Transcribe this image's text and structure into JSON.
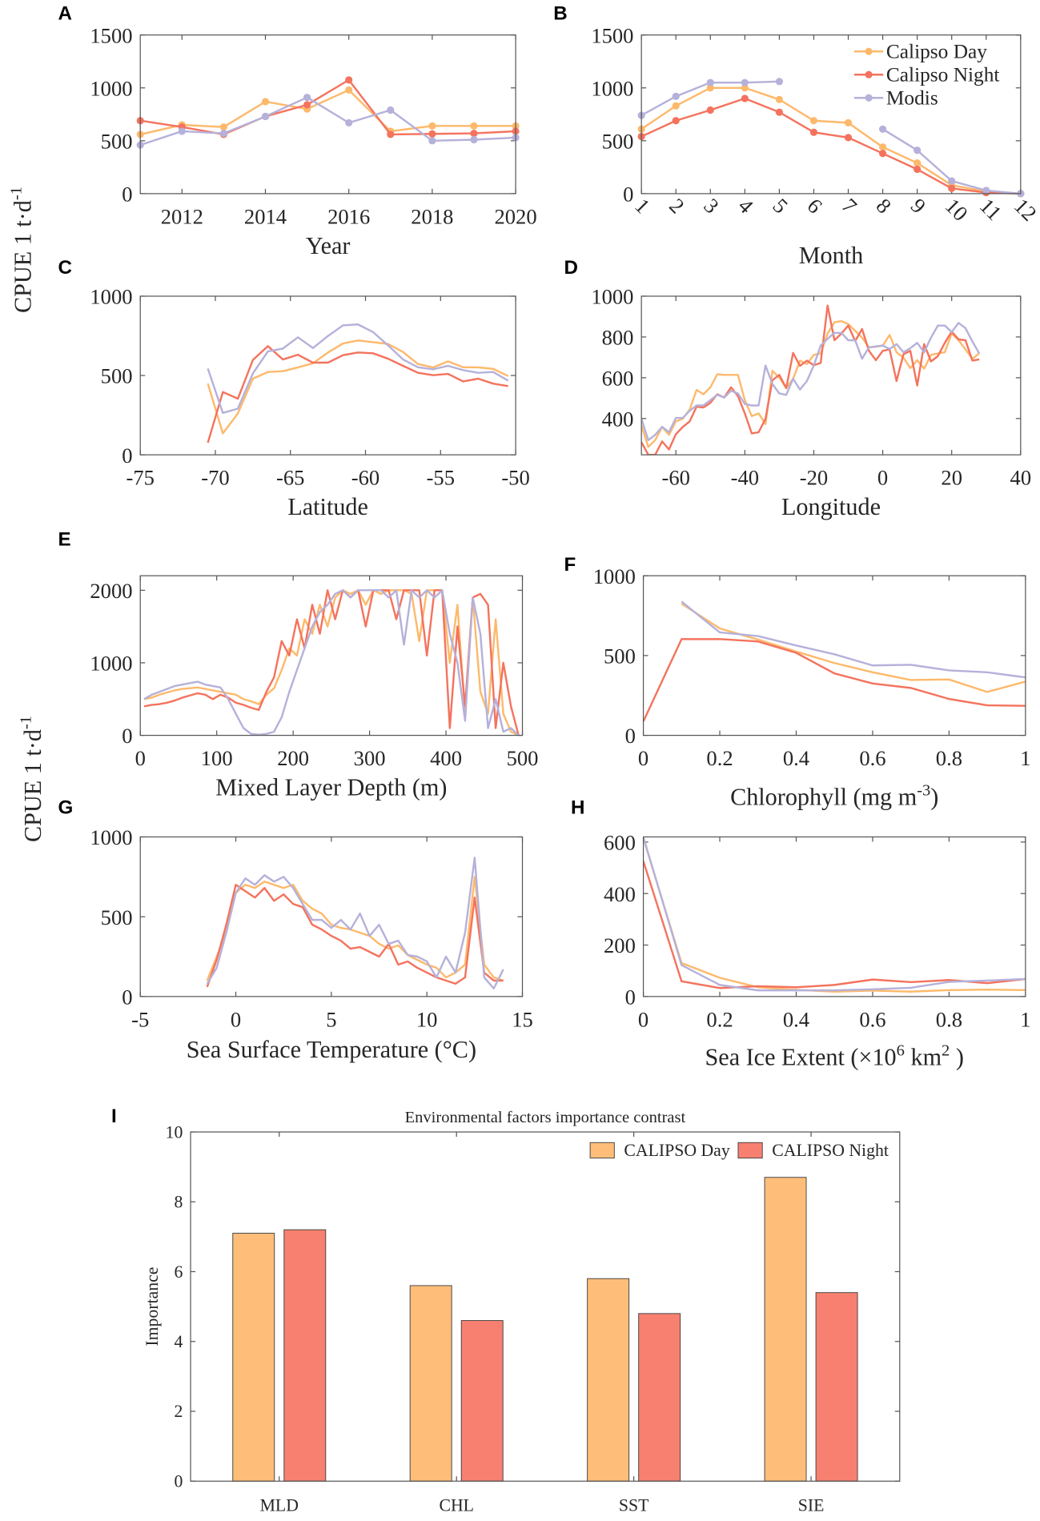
{
  "colors": {
    "day": "#FDB96B",
    "night": "#F4735E",
    "modis": "#B5B1DA",
    "bar_day": "#FEBE7A",
    "bar_night": "#F88070"
  },
  "shared_ylabel": {
    "text": "CPUE 1 t·d",
    "sup": "-1"
  },
  "legend_b": [
    "Calipso Day",
    "Calipso Night",
    "Modis"
  ],
  "chart_data": [
    {
      "panel": "A",
      "type": "line",
      "markers": true,
      "xlabel": "Year",
      "xlim": [
        2011,
        2020
      ],
      "ylim": [
        0,
        1500
      ],
      "xticks": [
        2012,
        2014,
        2016,
        2018,
        2020
      ],
      "yticks": [
        0,
        500,
        1000,
        1500
      ],
      "series": [
        {
          "name": "Calipso Day",
          "color": "#FDB96B",
          "x0": 2011,
          "dx": 1,
          "y": [
            560,
            650,
            630,
            870,
            800,
            980,
            590,
            640,
            640,
            640
          ]
        },
        {
          "name": "Calipso Night",
          "color": "#F4735E",
          "x0": 2011,
          "dx": 1,
          "y": [
            690,
            630,
            560,
            730,
            840,
            1075,
            560,
            565,
            570,
            590
          ]
        },
        {
          "name": "Modis",
          "color": "#B5B1DA",
          "x0": 2011,
          "dx": 1,
          "y": [
            460,
            590,
            570,
            730,
            910,
            670,
            790,
            500,
            510,
            530
          ]
        }
      ]
    },
    {
      "panel": "B",
      "type": "line",
      "markers": true,
      "xlabel": "Month",
      "xlim": [
        1,
        12
      ],
      "ylim": [
        0,
        1500
      ],
      "xticks": [
        1,
        2,
        3,
        4,
        5,
        6,
        7,
        8,
        9,
        10,
        11,
        12
      ],
      "yticks": [
        0,
        500,
        1000,
        1500
      ],
      "legend": "top-right",
      "series": [
        {
          "name": "Calipso Day",
          "color": "#FDB96B",
          "x0": 1,
          "dx": 1,
          "y": [
            610,
            830,
            1000,
            1000,
            890,
            690,
            670,
            440,
            290,
            80,
            20,
            0
          ]
        },
        {
          "name": "Calipso Night",
          "color": "#F4735E",
          "x0": 1,
          "dx": 1,
          "y": [
            540,
            690,
            790,
            900,
            770,
            580,
            530,
            380,
            230,
            50,
            10,
            0
          ]
        },
        {
          "name": "Modis",
          "color": "#B5B1DA",
          "x0": 1,
          "dx": 1,
          "y": [
            740,
            920,
            1050,
            1050,
            1060,
            null,
            null,
            610,
            410,
            120,
            30,
            0
          ]
        }
      ]
    },
    {
      "panel": "C",
      "type": "line",
      "markers": false,
      "xlabel": "Latitude",
      "xlim": [
        -75,
        -50
      ],
      "ylim": [
        0,
        1000
      ],
      "xticks": [
        -75,
        -70,
        -65,
        -60,
        -55,
        -50
      ],
      "yticks": [
        0,
        500,
        1000
      ],
      "series": [
        {
          "name": "Calipso Day",
          "color": "#FDB96B",
          "x0": -70.5,
          "dx": 1,
          "y": [
            449,
            135,
            261,
            480,
            522,
            527,
            551,
            577,
            645,
            702,
            721,
            710,
            699,
            648,
            572,
            551,
            589,
            552,
            551,
            542,
            497
          ]
        },
        {
          "name": "Calipso Night",
          "color": "#F4735E",
          "x0": -70.5,
          "dx": 1,
          "y": [
            76,
            396,
            354,
            598,
            685,
            601,
            631,
            581,
            581,
            628,
            645,
            640,
            606,
            561,
            517,
            502,
            510,
            463,
            480,
            449,
            433
          ]
        },
        {
          "name": "Modis",
          "color": "#B5B1DA",
          "x0": -70.5,
          "dx": 1,
          "y": [
            544,
            264,
            291,
            513,
            652,
            670,
            741,
            673,
            749,
            816,
            822,
            774,
            690,
            601,
            552,
            539,
            561,
            534,
            517,
            522,
            468
          ]
        }
      ]
    },
    {
      "panel": "D",
      "type": "line",
      "markers": false,
      "xlabel": "Longitude",
      "xlim": [
        -70,
        40
      ],
      "ylim": [
        222,
        1000
      ],
      "xticks": [
        -60,
        -40,
        -20,
        0,
        20,
        40
      ],
      "yticks": [
        400,
        600,
        800,
        1000
      ],
      "series": [
        {
          "name": "Calipso Day",
          "color": "#FDB96B",
          "x0": -70,
          "dx": 2,
          "y": [
            366,
            261,
            294,
            359,
            320,
            386,
            399,
            444,
            540,
            519,
            553,
            617,
            614,
            614,
            614,
            490,
            412,
            425,
            373,
            634,
            601,
            549,
            595,
            684,
            667,
            712,
            719,
            817,
            872,
            878,
            863,
            830,
            797,
            749,
            752,
            758,
            810,
            725,
            699,
            647,
            686,
            645,
            712,
            719,
            725,
            817,
            784,
            739,
            693,
            720
          ]
        },
        {
          "name": "Calipso Night",
          "color": "#F4735E",
          "x0": -70,
          "dx": 2,
          "y": [
            284,
            222,
            222,
            288,
            248,
            323,
            359,
            386,
            458,
            454,
            477,
            519,
            503,
            553,
            510,
            425,
            327,
            333,
            399,
            588,
            614,
            549,
            722,
            658,
            684,
            661,
            673,
            954,
            784,
            817,
            856,
            780,
            839,
            732,
            686,
            732,
            739,
            584,
            715,
            732,
            562,
            765,
            680,
            706,
            771,
            826,
            788,
            784,
            684,
            690
          ]
        },
        {
          "name": "Modis",
          "color": "#B5B1DA",
          "x0": -70,
          "dx": 2,
          "y": [
            399,
            294,
            320,
            359,
            333,
            403,
            403,
            438,
            464,
            464,
            490,
            516,
            503,
            536,
            523,
            471,
            464,
            464,
            660,
            569,
            523,
            516,
            595,
            542,
            584,
            660,
            758,
            791,
            820,
            820,
            784,
            784,
            693,
            749,
            754,
            758,
            741,
            765,
            725,
            745,
            771,
            725,
            797,
            856,
            856,
            824,
            869,
            843,
            778,
            719
          ]
        }
      ]
    },
    {
      "panel": "E",
      "type": "line",
      "markers": false,
      "xlabel": "Mixed Layer Depth (m)",
      "xlim": [
        0,
        500
      ],
      "ylim": [
        0,
        2200
      ],
      "xticks": [
        0,
        100,
        200,
        300,
        400,
        500
      ],
      "yticks": [
        0,
        1000,
        2000
      ],
      "series": [
        {
          "name": "Calipso Day",
          "color": "#FDB96B",
          "x0": 5,
          "dx": 10,
          "y": [
            500,
            520,
            560,
            590,
            620,
            640,
            650,
            660,
            640,
            620,
            600,
            580,
            560,
            500,
            470,
            430,
            560,
            650,
            900,
            1200,
            1100,
            1600,
            1400,
            1800,
            1500,
            1900,
            2000,
            1950,
            2000,
            1800,
            2000,
            1950,
            2000,
            2000,
            2000,
            1950,
            1300,
            2000,
            2000,
            2000,
            1000,
            1800,
            300,
            1900,
            600,
            300,
            1600,
            300,
            50,
            0
          ]
        },
        {
          "name": "Calipso Night",
          "color": "#F4735E",
          "x0": 5,
          "dx": 10,
          "y": [
            400,
            420,
            430,
            450,
            480,
            520,
            550,
            580,
            560,
            500,
            560,
            520,
            450,
            420,
            380,
            350,
            600,
            800,
            1300,
            1100,
            1600,
            1200,
            1800,
            1400,
            2000,
            1600,
            2000,
            1900,
            2000,
            1500,
            2000,
            2000,
            2000,
            1600,
            2000,
            2000,
            2000,
            1100,
            2000,
            2000,
            100,
            1500,
            400,
            1900,
            1950,
            1800,
            100,
            1000,
            400,
            0
          ]
        },
        {
          "name": "Modis",
          "color": "#B5B1DA",
          "x0": 5,
          "dx": 10,
          "y": [
            500,
            560,
            600,
            640,
            680,
            700,
            720,
            740,
            700,
            680,
            660,
            500,
            300,
            100,
            20,
            10,
            20,
            50,
            250,
            600,
            900,
            1200,
            1500,
            1700,
            1800,
            1950,
            2000,
            1900,
            2000,
            2000,
            2000,
            2000,
            1900,
            2000,
            1250,
            2000,
            1900,
            2000,
            1900,
            2000,
            1400,
            1000,
            200,
            1900,
            1400,
            100,
            500,
            50,
            100,
            0
          ]
        }
      ]
    },
    {
      "panel": "F",
      "type": "line",
      "markers": false,
      "xlabel": "Chlorophyll (mg m",
      "xlabel_sup": "-3",
      "xlabel_end": ")",
      "xlim": [
        0,
        1
      ],
      "ylim": [
        0,
        1000
      ],
      "xticks": [
        0,
        0.2,
        0.4,
        0.6,
        0.8,
        1
      ],
      "yticks": [
        0,
        500,
        1000
      ],
      "series": [
        {
          "name": "Calipso Day",
          "color": "#FDB96B",
          "x0": 0.1,
          "dx": 0.1,
          "y": [
            825,
            670,
            600,
            525,
            453,
            395,
            347,
            350,
            272,
            337
          ]
        },
        {
          "name": "Calipso Night",
          "color": "#F4735E",
          "x0": 0,
          "dx": 0.1,
          "y": [
            87,
            603,
            603,
            588,
            517,
            388,
            325,
            297,
            228,
            188,
            185
          ]
        },
        {
          "name": "Modis",
          "color": "#B5B1DA",
          "x0": 0.1,
          "dx": 0.1,
          "y": [
            838,
            645,
            622,
            563,
            508,
            438,
            442,
            407,
            395,
            363
          ]
        }
      ]
    },
    {
      "panel": "G",
      "type": "line",
      "markers": false,
      "xlabel": "Sea Surface Temperature (°C)",
      "xlim": [
        -5,
        15
      ],
      "ylim": [
        0,
        1000
      ],
      "xticks": [
        -5,
        0,
        5,
        10,
        15
      ],
      "yticks": [
        0,
        500,
        1000
      ],
      "series": [
        {
          "name": "Calipso Day",
          "color": "#FDB96B",
          "x0": -1.5,
          "dx": 0.5,
          "y": [
            100,
            250,
            400,
            650,
            700,
            680,
            720,
            700,
            680,
            700,
            600,
            550,
            520,
            450,
            430,
            420,
            400,
            380,
            330,
            300,
            320,
            260,
            230,
            200,
            180,
            120,
            150,
            200,
            750,
            200,
            120,
            100
          ]
        },
        {
          "name": "Calipso Night",
          "color": "#F4735E",
          "x0": -1.5,
          "dx": 0.5,
          "y": [
            60,
            230,
            450,
            700,
            660,
            620,
            680,
            600,
            640,
            580,
            560,
            450,
            420,
            380,
            350,
            300,
            310,
            280,
            250,
            330,
            200,
            220,
            180,
            150,
            120,
            100,
            80,
            120,
            620,
            150,
            100,
            100
          ]
        },
        {
          "name": "Modis",
          "color": "#B5B1DA",
          "x0": -1.5,
          "dx": 0.5,
          "y": [
            80,
            180,
            400,
            650,
            740,
            700,
            760,
            720,
            750,
            680,
            580,
            480,
            480,
            430,
            480,
            420,
            520,
            380,
            450,
            330,
            350,
            260,
            250,
            220,
            120,
            250,
            150,
            400,
            870,
            120,
            50,
            170
          ]
        }
      ]
    },
    {
      "panel": "H",
      "type": "line",
      "markers": false,
      "xlabel": "Sea Ice Extent (×10",
      "xlabel_sup": "6",
      "xlabel_mid": " km",
      "xlabel_sup2": "2",
      "xlabel_end": " )",
      "xlim": [
        0,
        1
      ],
      "ylim": [
        0,
        620
      ],
      "xticks": [
        0,
        0.2,
        0.4,
        0.6,
        0.8,
        1
      ],
      "yticks": [
        0,
        200,
        400,
        600
      ],
      "series": [
        {
          "name": "Calipso Day",
          "color": "#FDB96B",
          "x0": 0,
          "dx": 0.1,
          "y": [
            615,
            130,
            73,
            36,
            26,
            19,
            23,
            19,
            25,
            27,
            25
          ]
        },
        {
          "name": "Calipso Night",
          "color": "#F4735E",
          "x0": 0,
          "dx": 0.1,
          "y": [
            526,
            59,
            33,
            40,
            36,
            45,
            66,
            56,
            64,
            52,
            68
          ]
        },
        {
          "name": "Modis",
          "color": "#B5B1DA",
          "x0": 0,
          "dx": 0.1,
          "y": [
            620,
            122,
            45,
            24,
            24,
            24,
            28,
            34,
            57,
            62,
            68
          ]
        }
      ]
    },
    {
      "panel": "I",
      "type": "bar",
      "title": "Environmental factors importance contrast",
      "ylabel": "Importance",
      "categories": [
        "MLD",
        "CHL",
        "SST",
        "SIE"
      ],
      "ylim": [
        0,
        10
      ],
      "yticks": [
        0,
        2,
        4,
        6,
        8,
        10
      ],
      "legend": "top-right",
      "series": [
        {
          "name": "CALIPSO Day",
          "color": "#FEBE7A",
          "values": [
            7.1,
            5.6,
            5.8,
            8.7
          ]
        },
        {
          "name": "CALIPSO Night",
          "color": "#F88070",
          "values": [
            7.2,
            4.6,
            4.8,
            5.4
          ]
        }
      ]
    }
  ]
}
